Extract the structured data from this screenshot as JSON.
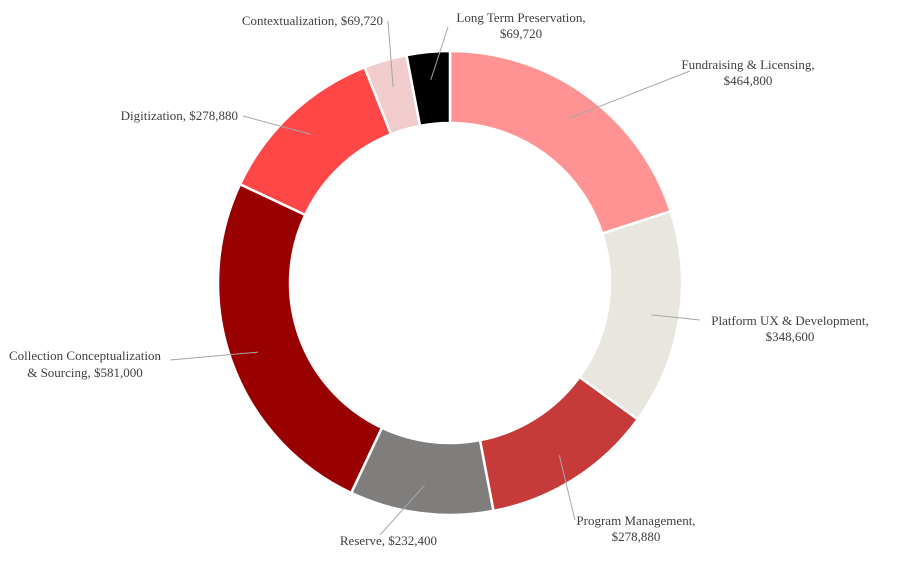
{
  "chart_data": {
    "type": "pie",
    "variant": "donut",
    "title": "",
    "legend": "none",
    "slices": [
      {
        "name": "Fundraising & Licensing",
        "value": 464800,
        "value_label": "$464,800",
        "color": "#ff9393"
      },
      {
        "name": "Platform UX & Development",
        "value": 348600,
        "value_label": "$348,600",
        "color": "#e9e5df"
      },
      {
        "name": "Program Management",
        "value": 278880,
        "value_label": "$278,880",
        "color": "#c73a3a"
      },
      {
        "name": "Reserve",
        "value": 232400,
        "value_label": "$232,400",
        "color": "#807e7c"
      },
      {
        "name": "Collection Conceptualization & Sourcing",
        "value": 581000,
        "value_label": "$581,000",
        "color": "#990000"
      },
      {
        "name": "Digitization",
        "value": 278880,
        "value_label": "$278,880",
        "color": "#ff4747"
      },
      {
        "name": "Contextualization",
        "value": 69720,
        "value_label": "$69,720",
        "color": "#f0cccc"
      },
      {
        "name": "Long Term Preservation",
        "value": 69720,
        "value_label": "$69,720",
        "color": "#000000"
      }
    ]
  }
}
